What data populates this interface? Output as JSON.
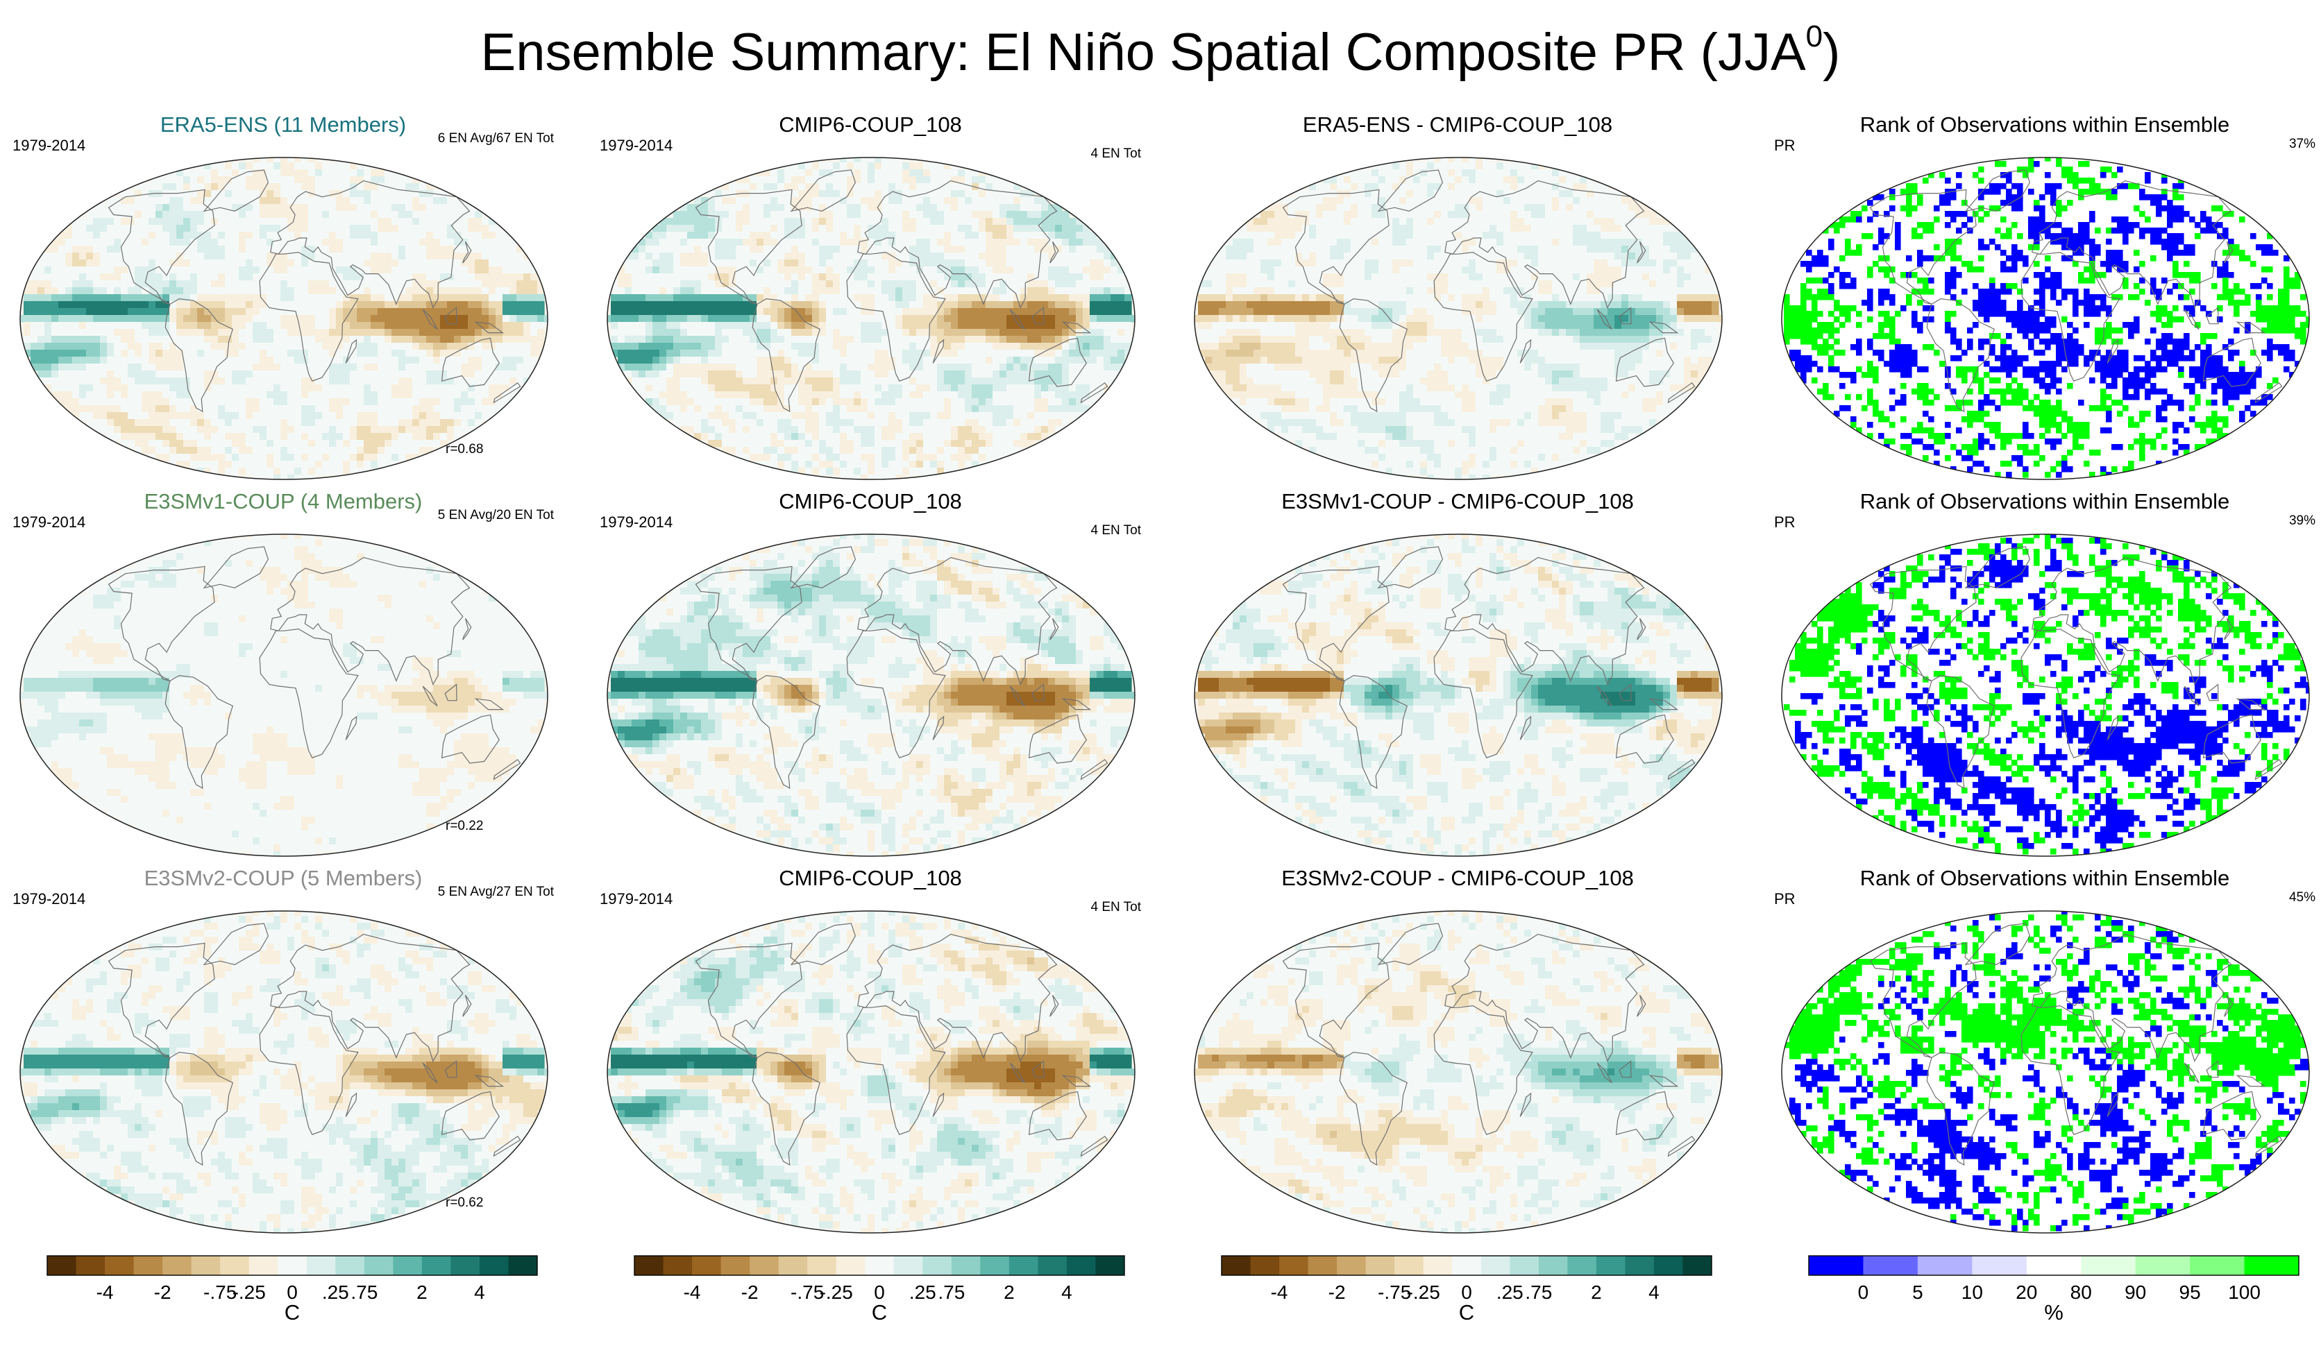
{
  "page": {
    "title_main": "Ensemble Summary: El Niño Spatial Composite PR (JJA",
    "title_sup": "0",
    "title_close": ")"
  },
  "colors": {
    "brown_teal_scale": [
      "#4f2e07",
      "#7a4a10",
      "#9a6421",
      "#b88a47",
      "#cda86c",
      "#dfc697",
      "#eedcb7",
      "#f8efde",
      "#f4f9f8",
      "#dcefec",
      "#b7e2dc",
      "#8fd0c6",
      "#5fb7ab",
      "#38998e",
      "#1f7b70",
      "#0b5f56",
      "#064138"
    ],
    "rank_scale": [
      "#0000ff",
      "#6666ff",
      "#b2b2ff",
      "#e0e0ff",
      "#ffffff",
      "#e3ffe3",
      "#b3ffb3",
      "#80ff80",
      "#00ff00"
    ],
    "title_colors": {
      "era5": "#17727e",
      "e3smv1": "#5a8c5a",
      "e3smv2": "#8c8c8c"
    }
  },
  "chart_data": [
    {
      "type": "heatmap",
      "map": "robinson",
      "row": 0,
      "col": 0,
      "title": "ERA5-ENS (11 Members)",
      "title_color": "era5",
      "left_text": "1979-2014",
      "right_text": "6 EN Avg/67 EN Tot",
      "corr": "r=0.68",
      "seed": 11,
      "amplitude": 0.85,
      "enso_sign": 1,
      "style": "diverging"
    },
    {
      "type": "heatmap",
      "map": "robinson",
      "row": 0,
      "col": 1,
      "title": "CMIP6-COUP_108",
      "left_text": "1979-2014",
      "right_text": "4 EN Tot",
      "seed": 22,
      "amplitude": 1.0,
      "enso_sign": 1,
      "style": "diverging"
    },
    {
      "type": "heatmap",
      "map": "robinson",
      "row": 0,
      "col": 2,
      "title": "ERA5-ENS - CMIP6-COUP_108",
      "seed": 33,
      "amplitude": 0.7,
      "enso_sign": -0.6,
      "style": "diverging"
    },
    {
      "type": "heatmap",
      "map": "robinson",
      "row": 0,
      "col": 3,
      "title": "Rank of Observations within Ensemble",
      "left_text": "PR",
      "right_text": "37%",
      "seed": 44,
      "style": "rank"
    },
    {
      "type": "heatmap",
      "map": "robinson",
      "row": 1,
      "col": 0,
      "title": "E3SMv1-COUP (4 Members)",
      "title_color": "e3smv1",
      "left_text": "1979-2014",
      "right_text": "5 EN Avg/20 EN Tot",
      "corr": "r=0.22",
      "seed": 55,
      "amplitude": 0.45,
      "enso_sign": 0.4,
      "style": "diverging"
    },
    {
      "type": "heatmap",
      "map": "robinson",
      "row": 1,
      "col": 1,
      "title": "CMIP6-COUP_108",
      "left_text": "1979-2014",
      "right_text": "4 EN Tot",
      "seed": 66,
      "amplitude": 1.0,
      "enso_sign": 1,
      "style": "diverging"
    },
    {
      "type": "heatmap",
      "map": "robinson",
      "row": 1,
      "col": 2,
      "title": "E3SMv1-COUP - CMIP6-COUP_108",
      "seed": 77,
      "amplitude": 0.9,
      "enso_sign": -0.9,
      "style": "diverging"
    },
    {
      "type": "heatmap",
      "map": "robinson",
      "row": 1,
      "col": 3,
      "title": "Rank of Observations within Ensemble",
      "left_text": "PR",
      "right_text": "39%",
      "seed": 88,
      "style": "rank"
    },
    {
      "type": "heatmap",
      "map": "robinson",
      "row": 2,
      "col": 0,
      "title": "E3SMv2-COUP (5 Members)",
      "title_color": "e3smv2",
      "left_text": "1979-2014",
      "right_text": "5 EN Avg/27 EN Tot",
      "corr": "r=0.62",
      "seed": 99,
      "amplitude": 0.8,
      "enso_sign": 0.9,
      "style": "diverging"
    },
    {
      "type": "heatmap",
      "map": "robinson",
      "row": 2,
      "col": 1,
      "title": "CMIP6-COUP_108",
      "left_text": "1979-2014",
      "right_text": "4 EN Tot",
      "seed": 110,
      "amplitude": 1.0,
      "enso_sign": 1,
      "style": "diverging"
    },
    {
      "type": "heatmap",
      "map": "robinson",
      "row": 2,
      "col": 2,
      "title": "E3SMv2-COUP - CMIP6-COUP_108",
      "seed": 121,
      "amplitude": 0.75,
      "enso_sign": -0.5,
      "style": "diverging"
    },
    {
      "type": "heatmap",
      "map": "robinson",
      "row": 2,
      "col": 3,
      "title": "Rank of Observations within Ensemble",
      "left_text": "PR",
      "right_text": "45%",
      "seed": 132,
      "style": "rank"
    }
  ],
  "colorbars": [
    {
      "kind": "diverging",
      "labels": [
        "-4",
        "-2",
        "-.75",
        "-.25",
        "0",
        ".25",
        ".75",
        "2",
        "4"
      ],
      "units": "C"
    },
    {
      "kind": "diverging",
      "labels": [
        "-4",
        "-2",
        "-.75",
        "-.25",
        "0",
        ".25",
        ".75",
        "2",
        "4"
      ],
      "units": "C"
    },
    {
      "kind": "diverging",
      "labels": [
        "-4",
        "-2",
        "-.75",
        "-.25",
        "0",
        ".25",
        ".75",
        "2",
        "4"
      ],
      "units": "C"
    },
    {
      "kind": "rank",
      "labels": [
        "0",
        "5",
        "10",
        "20",
        "80",
        "90",
        "95",
        "100"
      ],
      "units": "%"
    }
  ]
}
